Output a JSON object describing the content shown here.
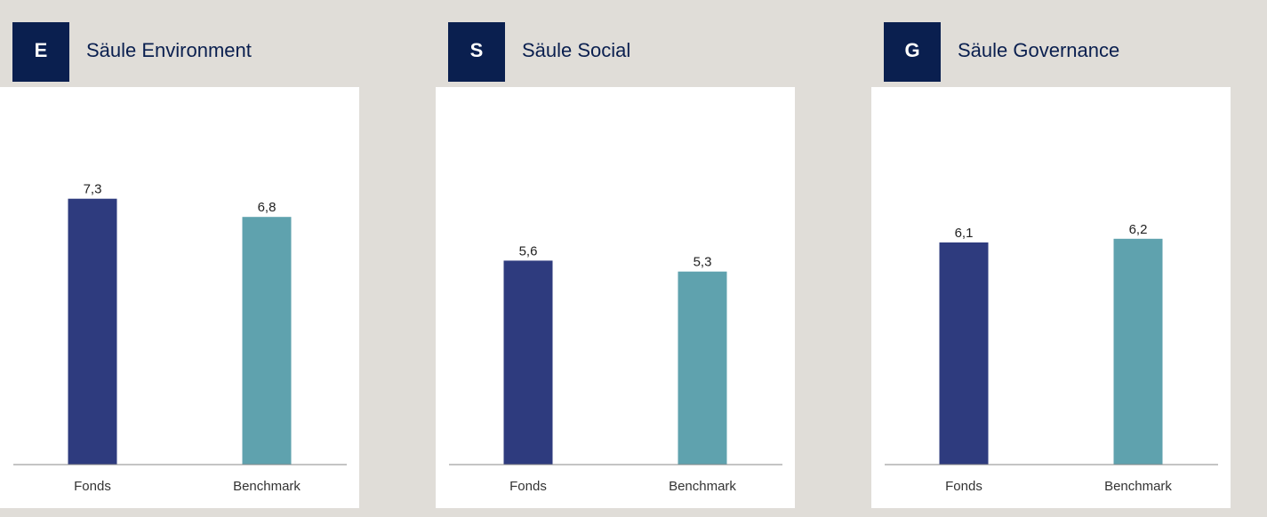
{
  "chart_data": [
    {
      "type": "bar",
      "badge": "E",
      "title": "Säule Environment",
      "categories": [
        "Fonds",
        "Benchmark"
      ],
      "values": [
        7.3,
        6.8
      ],
      "value_labels": [
        "7,3",
        "6,8"
      ],
      "colors": [
        "#2e3b7e",
        "#5fa2ae"
      ],
      "ylim": [
        0,
        10
      ]
    },
    {
      "type": "bar",
      "badge": "S",
      "title": "Säule Social",
      "categories": [
        "Fonds",
        "Benchmark"
      ],
      "values": [
        5.6,
        5.3
      ],
      "value_labels": [
        "5,6",
        "5,3"
      ],
      "colors": [
        "#2e3b7e",
        "#5fa2ae"
      ],
      "ylim": [
        0,
        10
      ]
    },
    {
      "type": "bar",
      "badge": "G",
      "title": "Säule Governance",
      "categories": [
        "Fonds",
        "Benchmark"
      ],
      "values": [
        6.1,
        6.2
      ],
      "value_labels": [
        "6,1",
        "6,2"
      ],
      "colors": [
        "#2e3b7e",
        "#5fa2ae"
      ],
      "ylim": [
        0,
        10
      ]
    }
  ]
}
